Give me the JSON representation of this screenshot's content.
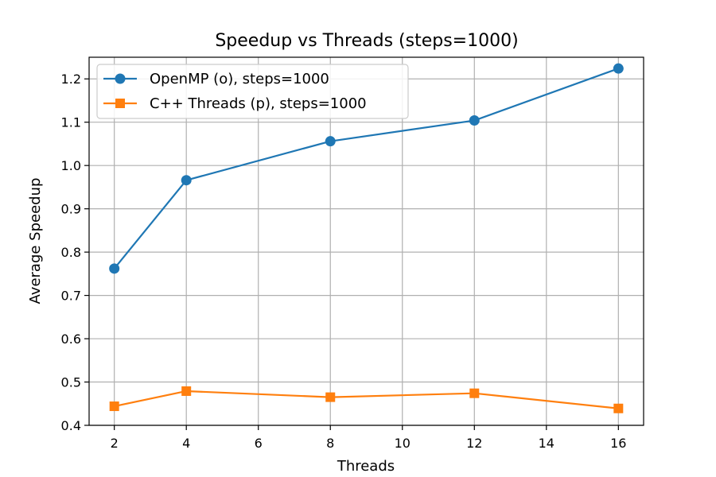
{
  "chart_data": {
    "type": "line",
    "title": "Speedup vs Threads (steps=1000)",
    "xlabel": "Threads",
    "ylabel": "Average Speedup",
    "x": [
      2,
      4,
      8,
      12,
      16
    ],
    "xlim": [
      1.3,
      16.7
    ],
    "ylim": [
      0.4,
      1.25
    ],
    "xticks": [
      2,
      4,
      6,
      8,
      10,
      12,
      14,
      16
    ],
    "yticks": [
      0.4,
      0.5,
      0.6,
      0.7,
      0.8,
      0.9,
      1.0,
      1.1,
      1.2
    ],
    "ytick_labels": [
      "0.4",
      "0.5",
      "0.6",
      "0.7",
      "0.8",
      "0.9",
      "1.0",
      "1.1",
      "1.2"
    ],
    "grid": true,
    "legend_position": "top-left",
    "series": [
      {
        "name": "OpenMP (o), steps=1000",
        "color": "#1f77b4",
        "marker": "circle",
        "values": [
          0.762,
          0.966,
          1.056,
          1.104,
          1.224
        ]
      },
      {
        "name": "C++ Threads (p), steps=1000",
        "color": "#ff7f0e",
        "marker": "square",
        "values": [
          0.444,
          0.479,
          0.465,
          0.474,
          0.439
        ]
      }
    ]
  }
}
